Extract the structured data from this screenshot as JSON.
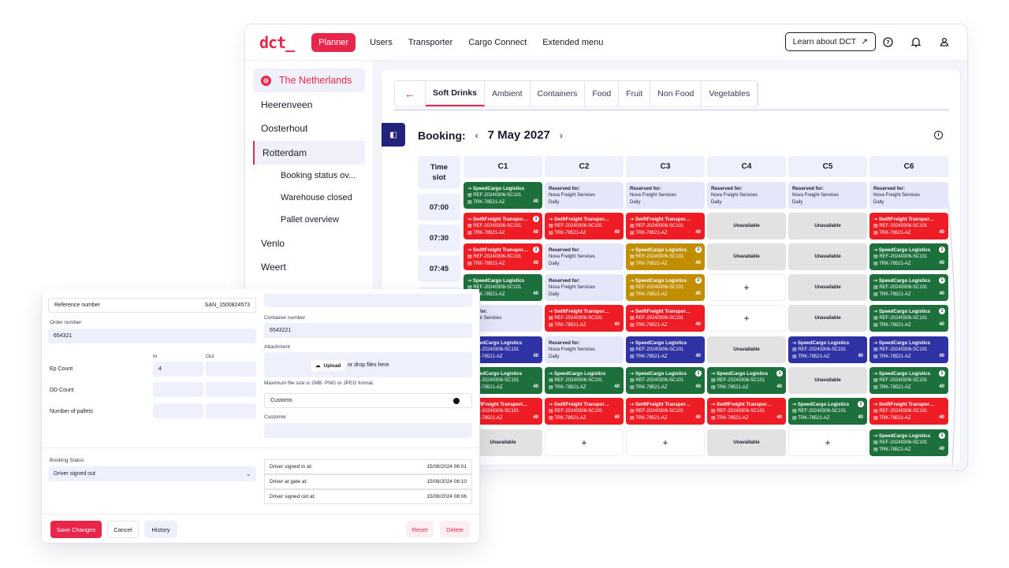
{
  "topbar": {
    "logo": "dct_",
    "nav": [
      "Planner",
      "Users",
      "Transporter",
      "Cargo Connect",
      "Extended menu"
    ],
    "learn_label": "Learn about DCT",
    "learn_icon": "arrow-up-right-icon"
  },
  "sidebar": {
    "country": "The Netherlands",
    "cities": [
      "Heerenveen",
      "Oosterhout",
      "Rotterdam"
    ],
    "sub_items": [
      "Booking status ov...",
      "Warehouse closed",
      "Pallet overview"
    ],
    "more_cities": [
      "Venlo",
      "Weert"
    ],
    "accent": "#e8264c"
  },
  "tabs": [
    "Soft Drinks",
    "Ambient",
    "Containers",
    "Food",
    "Fruit",
    "Non Food",
    "Vegetables"
  ],
  "booking": {
    "label": "Booking:",
    "date": "7 May 2027"
  },
  "grid": {
    "time_header": [
      "Time",
      "slot"
    ],
    "columns": [
      "C1",
      "C2",
      "C3",
      "C4",
      "C5",
      "C6"
    ],
    "times": [
      "07:00",
      "07:30",
      "07:45"
    ],
    "texts": {
      "speed": "SpeedCargo Logistics",
      "swift": "SwiftFreight Transportatio...",
      "swift_short": "SwiftFreight Transport...",
      "ref": "REF-20240306-SC101",
      "trk": "TRK-78521-AZ",
      "qty": "40",
      "reserved": "Reserved for:",
      "nova": "Nova Freight Services",
      "nova_partial": "Freight Services",
      "reserved_partial": "rved for:",
      "daily": "Daily",
      "unavailable": "Unavailable",
      "plus": "+"
    },
    "colors": {
      "green": "#1d6f3c",
      "red": "#ee1c24",
      "blue": "#2e32a3",
      "gold": "#c08e00",
      "reserved": "#e5e6fa",
      "unavailable": "#e2e2e2"
    }
  },
  "form": {
    "reference_label": "Reference number",
    "reference_value": "SAN_1500824573",
    "order_label": "Order number",
    "order_value": "654321",
    "in_label": "In",
    "out_label": "Out",
    "ep_label": "Ep Count",
    "ep_in": "4",
    "dd_label": "DD Count",
    "pallets_label": "Number of pallets",
    "container_label": "Container number",
    "container_value": "6543221",
    "attachment_label": "Attachment",
    "upload_label": "Upload",
    "drop_label": "or drop files here",
    "max_size": "Maximum file size is 2MB. PNG or JPEG format.",
    "customs_label": "Customs",
    "customer_label": "Customer",
    "status_label": "Booking Status",
    "status_value": "Driver signed out",
    "signed_in_label": "Driver signed in at:",
    "signed_in_value": "15/08/2024 06:01",
    "at_gate_label": "Driver at gate at:",
    "at_gate_value": "15/08/2024 06:10",
    "signed_out_label": "Driver signed out at:",
    "signed_out_value": "15/08/2024 08:06",
    "save_label": "Save Changes",
    "cancel_label": "Cancel",
    "history_label": "History",
    "reset_label": "Reset",
    "delete_label": "Delete"
  }
}
